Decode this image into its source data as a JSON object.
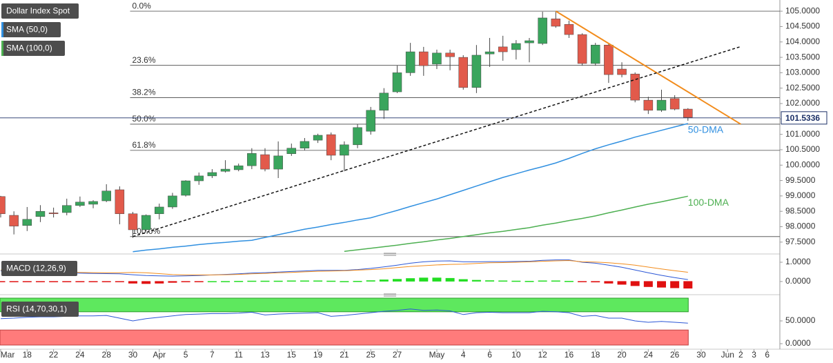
{
  "chart_data": [
    {
      "type": "candlestick",
      "title": "Dollar Index Spot",
      "categories": [
        "Mar",
        null,
        "18",
        null,
        "22",
        null,
        "24",
        null,
        "28",
        null,
        "30",
        null,
        "Apr",
        null,
        "5",
        null,
        "7",
        null,
        "11",
        null,
        "13",
        null,
        "15",
        null,
        "19",
        null,
        "21",
        null,
        "25",
        null,
        "27",
        null,
        null,
        "May",
        null,
        "4",
        null,
        "6",
        null,
        "10",
        null,
        "12",
        null,
        "16",
        null,
        "18",
        null,
        "20",
        null,
        "24",
        null,
        "26",
        null,
        "30",
        null,
        "Jun",
        "2",
        "3",
        "6"
      ],
      "open": [
        98.98,
        98.37,
        98.04,
        98.33,
        98.45,
        98.46,
        98.69,
        98.73,
        98.84,
        99.2,
        98.42,
        97.9,
        98.42,
        98.64,
        99.02,
        99.49,
        99.65,
        99.8,
        99.85,
        99.98,
        100.34,
        99.87,
        100.37,
        100.55,
        100.81,
        100.99,
        100.32,
        100.66,
        101.1,
        101.78,
        102.38,
        103.0,
        103.68,
        103.28,
        103.64,
        103.5,
        102.52,
        103.61,
        103.84,
        103.75,
        103.97,
        103.95,
        104.75,
        104.57,
        104.24,
        103.3,
        103.9,
        103.12,
        102.96,
        102.11,
        101.78,
        102.16,
        101.82,
        null,
        null,
        null,
        null,
        null,
        null
      ],
      "high": [
        99.0,
        98.5,
        98.64,
        98.7,
        98.62,
        98.91,
        98.98,
        98.86,
        99.38,
        99.31,
        98.48,
        98.4,
        98.75,
        99.1,
        99.51,
        99.76,
        99.87,
        100.16,
        100.05,
        100.55,
        100.55,
        100.77,
        100.7,
        100.88,
        101.02,
        101.06,
        100.77,
        101.33,
        101.89,
        102.5,
        103.23,
        103.97,
        103.84,
        103.75,
        103.75,
        103.57,
        103.9,
        104.13,
        104.2,
        104.06,
        104.13,
        104.98,
        104.98,
        104.69,
        104.28,
        103.97,
        103.97,
        103.34,
        103.01,
        102.22,
        102.45,
        102.27,
        101.85,
        null,
        null,
        null,
        null,
        null,
        null
      ],
      "low": [
        98.3,
        97.75,
        97.86,
        98.15,
        98.3,
        98.37,
        98.64,
        98.6,
        98.8,
        98.08,
        97.64,
        97.85,
        98.24,
        98.58,
        98.98,
        99.36,
        99.58,
        99.76,
        99.8,
        99.87,
        99.8,
        99.58,
        100.3,
        100.48,
        100.72,
        100.16,
        99.8,
        100.55,
        100.99,
        101.5,
        102.34,
        102.9,
        102.9,
        103.12,
        103.08,
        102.45,
        102.34,
        103.19,
        103.39,
        103.43,
        103.34,
        103.9,
        104.46,
        104.13,
        103.23,
        103.23,
        102.67,
        102.85,
        102.04,
        101.66,
        101.73,
        101.78,
        101.44,
        null,
        null,
        null,
        null,
        null,
        null
      ],
      "close": [
        98.42,
        98.02,
        98.24,
        98.5,
        98.42,
        98.69,
        98.8,
        98.82,
        99.16,
        98.42,
        97.9,
        98.37,
        98.64,
        99.0,
        99.49,
        99.65,
        99.76,
        99.87,
        99.98,
        100.38,
        99.87,
        100.3,
        100.55,
        100.77,
        100.97,
        100.32,
        100.66,
        101.22,
        101.78,
        102.34,
        103.0,
        103.68,
        103.23,
        103.64,
        103.52,
        102.52,
        103.57,
        103.68,
        103.68,
        103.95,
        104.04,
        104.78,
        104.51,
        104.24,
        103.3,
        103.9,
        102.94,
        102.94,
        102.11,
        101.78,
        102.11,
        101.82,
        101.55,
        null,
        null,
        null,
        null,
        null,
        null
      ],
      "up_color": "#3aa55d",
      "down_color": "#e25a4b",
      "series": [
        {
          "name": "SMA (50,0)",
          "label": "50-DMA",
          "color": "#2f8fe0",
          "values": [
            null,
            null,
            null,
            null,
            null,
            null,
            null,
            null,
            null,
            null,
            97.19,
            97.24,
            97.28,
            97.33,
            97.37,
            97.42,
            97.46,
            97.49,
            97.53,
            97.56,
            97.65,
            97.74,
            97.83,
            97.92,
            97.99,
            98.07,
            98.14,
            98.22,
            98.29,
            98.41,
            98.53,
            98.66,
            98.78,
            98.9,
            99.04,
            99.18,
            99.32,
            99.46,
            99.6,
            99.72,
            99.84,
            99.95,
            100.07,
            100.22,
            100.38,
            100.53,
            100.66,
            100.78,
            100.91,
            101.02,
            101.13,
            101.24,
            101.35,
            null,
            null,
            null,
            null,
            null,
            null
          ]
        },
        {
          "name": "SMA (100,0)",
          "label": "100-DMA",
          "color": "#4caf50",
          "values": [
            null,
            null,
            null,
            null,
            null,
            null,
            null,
            null,
            null,
            null,
            null,
            null,
            null,
            null,
            null,
            null,
            null,
            null,
            null,
            null,
            null,
            null,
            null,
            null,
            null,
            null,
            97.2,
            97.25,
            97.3,
            97.35,
            97.4,
            97.46,
            97.51,
            97.57,
            97.62,
            97.68,
            97.74,
            97.8,
            97.85,
            97.91,
            97.97,
            98.05,
            98.12,
            98.2,
            98.27,
            98.35,
            98.45,
            98.54,
            98.64,
            98.73,
            98.81,
            98.9,
            98.99,
            null,
            null,
            null,
            null,
            null,
            null
          ]
        }
      ],
      "fib_levels": [
        {
          "name": "0.0%",
          "price": 105.0
        },
        {
          "name": "23.6%",
          "price": 103.24
        },
        {
          "name": "38.2%",
          "price": 102.19
        },
        {
          "name": "50.0%",
          "price": 101.33
        },
        {
          "name": "61.8%",
          "price": 100.48
        },
        {
          "name": "100.0%",
          "price": 97.68
        }
      ],
      "trendlines": [
        {
          "style": "solid",
          "color": "#f28c1c",
          "from": [
            42,
            105.0
          ],
          "to": [
            56,
            101.33
          ]
        },
        {
          "style": "dotted",
          "color": "#111111",
          "from": [
            10,
            97.68
          ],
          "to": [
            56,
            103.85
          ]
        }
      ],
      "last_price": 101.5336,
      "ylim": [
        97.16,
        105.25
      ],
      "yticks": [
        {
          "value": 97.5,
          "label": "97.5000"
        },
        {
          "value": 98,
          "label": "98.0000"
        },
        {
          "value": 98.5,
          "label": "98.5000"
        },
        {
          "value": 99,
          "label": "99.0000"
        },
        {
          "value": 99.5,
          "label": "99.5000"
        },
        {
          "value": 100,
          "label": "100.0000"
        },
        {
          "value": 100.5,
          "label": "100.5000"
        },
        {
          "value": 101,
          "label": "101.0000"
        },
        {
          "value": 101.5,
          "label": "101.5000"
        },
        {
          "value": 102,
          "label": "102.0000"
        },
        {
          "value": 102.5,
          "label": "102.5000"
        },
        {
          "value": 103,
          "label": "103.0000"
        },
        {
          "value": 103.5,
          "label": "103.5000"
        },
        {
          "value": 104,
          "label": "104.0000"
        },
        {
          "value": 104.5,
          "label": "104.5000"
        },
        {
          "value": 105,
          "label": "105.0000"
        }
      ]
    },
    {
      "type": "macd",
      "title": "MACD (12,26,9)",
      "series": [
        {
          "color": "#2a56d6",
          "values": [
            0.55,
            0.53,
            0.5,
            0.48,
            0.46,
            0.45,
            0.43,
            0.42,
            0.41,
            0.4,
            0.35,
            0.31,
            0.29,
            0.28,
            0.29,
            0.31,
            0.34,
            0.37,
            0.4,
            0.44,
            0.46,
            0.49,
            0.52,
            0.55,
            0.58,
            0.58,
            0.58,
            0.62,
            0.68,
            0.76,
            0.85,
            0.95,
            1.02,
            1.06,
            1.07,
            1.02,
            1.02,
            1.03,
            1.03,
            1.04,
            1.05,
            1.1,
            1.12,
            1.12,
            1.0,
            0.95,
            0.85,
            0.74,
            0.6,
            0.45,
            0.32,
            0.2,
            0.1,
            null,
            null,
            null,
            null,
            null,
            null
          ]
        },
        {
          "color": "#f28c1c",
          "values": [
            0.6,
            0.58,
            0.55,
            0.53,
            0.5,
            0.49,
            0.47,
            0.46,
            0.45,
            0.45,
            0.47,
            0.45,
            0.41,
            0.36,
            0.34,
            0.34,
            0.34,
            0.35,
            0.37,
            0.4,
            0.42,
            0.45,
            0.47,
            0.5,
            0.53,
            0.54,
            0.56,
            0.59,
            0.62,
            0.66,
            0.72,
            0.78,
            0.82,
            0.86,
            0.89,
            0.9,
            0.94,
            0.97,
            0.98,
            1.0,
            1.02,
            1.05,
            1.07,
            1.09,
            1.02,
            1.01,
            0.97,
            0.92,
            0.85,
            0.75,
            0.65,
            0.56,
            0.48,
            null,
            null,
            null,
            null,
            null,
            null
          ]
        }
      ],
      "histogram": [
        -0.05,
        -0.05,
        -0.05,
        -0.05,
        -0.04,
        -0.04,
        -0.04,
        -0.04,
        -0.04,
        -0.05,
        -0.12,
        -0.14,
        -0.12,
        -0.08,
        -0.05,
        -0.03,
        0.0,
        0.02,
        0.03,
        0.04,
        0.04,
        0.04,
        0.05,
        0.05,
        0.05,
        0.04,
        0.02,
        0.03,
        0.06,
        0.1,
        0.13,
        0.17,
        0.2,
        0.2,
        0.18,
        0.12,
        0.08,
        0.06,
        0.05,
        0.04,
        0.03,
        0.05,
        0.05,
        0.03,
        -0.02,
        -0.06,
        -0.12,
        -0.18,
        -0.25,
        -0.3,
        -0.33,
        -0.36,
        -0.38,
        null,
        null,
        null,
        null,
        null,
        null
      ],
      "up_color": "#22dd22",
      "down_color": "#e01010",
      "ylim": [
        -0.54,
        1.25
      ],
      "yticks": [
        {
          "value": 1,
          "label": "1.0000"
        },
        {
          "value": 0,
          "label": "0.0000"
        }
      ]
    },
    {
      "type": "rsi",
      "title": "RSI (14,70,30,1)",
      "series": [
        {
          "color": "#2a56d6",
          "values": [
            55,
            56,
            58,
            59,
            59,
            60,
            61,
            61,
            62,
            56,
            50,
            55,
            58,
            61,
            64,
            65,
            66,
            66,
            67,
            69,
            63,
            65,
            66,
            67,
            68,
            60,
            62,
            65,
            68,
            71,
            73,
            76,
            73,
            74,
            72,
            64,
            68,
            69,
            68,
            68,
            68,
            71,
            70,
            68,
            60,
            62,
            56,
            56,
            50,
            47,
            49,
            47,
            45,
            null,
            null,
            null,
            null,
            null,
            null
          ]
        }
      ],
      "upper_band": [
        70,
        100
      ],
      "upper_color": "#5ee85e",
      "lower_band": [
        -3,
        30
      ],
      "lower_color": "#ff7b7b",
      "ylim": [
        -10.6,
        100
      ],
      "yticks": [
        {
          "value": 50,
          "label": "50.0000"
        },
        {
          "value": 0,
          "label": "0.0000"
        }
      ]
    }
  ]
}
